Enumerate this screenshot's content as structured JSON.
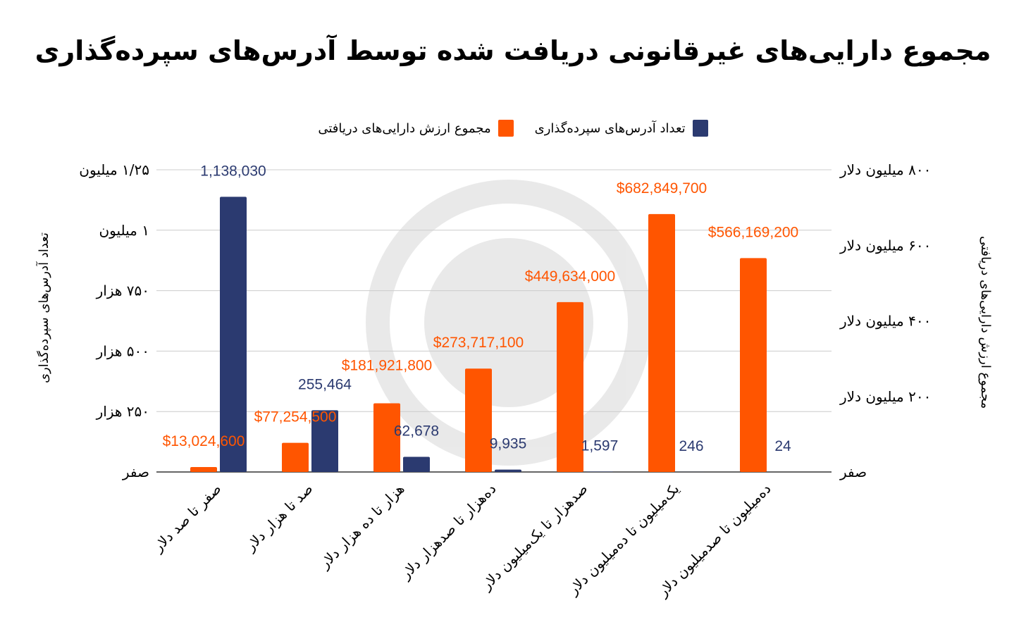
{
  "title": "مجموع دارایی‌های غیرقانونی دریافت شده توسط آدرس‌های سپرده‌گذاری",
  "colors": {
    "orange": "#ff5500",
    "navy": "#2b3a70",
    "grid": "#cccccc",
    "orange_label": "#ff5500",
    "navy_label": "#2b3a70"
  },
  "chart_data": {
    "type": "bar",
    "title": "مجموع دارایی‌های غیرقانونی دریافت شده توسط آدرس‌های سپرده‌گذاری",
    "categories": [
      "صفر تا صد دلار",
      "صد تا هزار دلار",
      "هزار تا ده هزار دلار",
      "ده‌هزار تا صدهزار دلار",
      "صدهزار تا یک‌میلیون دلار",
      "یک‌میلیون تا ده‌میلیون دلار",
      "ده‌میلیون تا صدمیلیون دلار"
    ],
    "series": [
      {
        "name": "مجموع ارزش دارایی‌های دریافتی",
        "axis": "right",
        "color": "#ff5500",
        "values": [
          13024600,
          77254500,
          181921800,
          273717100,
          449634000,
          682849700,
          566169200
        ],
        "labels": [
          "$13,024,600",
          "$77,254,500",
          "$181,921,800",
          "$273,717,100",
          "$449,634,000",
          "$682,849,700",
          "$566,169,200"
        ]
      },
      {
        "name": "تعداد آدرس‌های سپرده‌گذاری",
        "axis": "left",
        "color": "#2b3a70",
        "values": [
          1138030,
          255464,
          62678,
          9935,
          1597,
          246,
          24
        ],
        "labels": [
          "1,138,030",
          "255,464",
          "62,678",
          "9,935",
          "1,597",
          "246",
          "24"
        ]
      }
    ],
    "legend": {
      "placement": "top",
      "items": [
        "تعداد آدرس‌های سپرده‌گذاری",
        "مجموع ارزش دارایی‌های دریافتی"
      ]
    },
    "left_axis": {
      "label": "تعداد آدرس‌های سپرده‌گذاری",
      "range": [
        0,
        1250000
      ],
      "ticks": [
        0,
        250000,
        500000,
        750000,
        1000000,
        1250000
      ],
      "tick_labels": [
        "صفر",
        "۲۵۰ هزار",
        "۵۰۰ هزار",
        "۷۵۰ هزار",
        "۱ میلیون",
        "۱/۲۵ میلیون"
      ]
    },
    "right_axis": {
      "label": "مجموع ارزش دارایی‌های دریافتی",
      "range": [
        0,
        800000000
      ],
      "ticks": [
        0,
        200000000,
        400000000,
        600000000,
        800000000
      ],
      "tick_labels": [
        "صفر",
        "۲۰۰ میلیون دلار",
        "۴۰۰ میلیون دلار",
        "۶۰۰ میلیون دلار",
        "۸۰۰ میلیون دلار"
      ]
    },
    "grid": true
  }
}
